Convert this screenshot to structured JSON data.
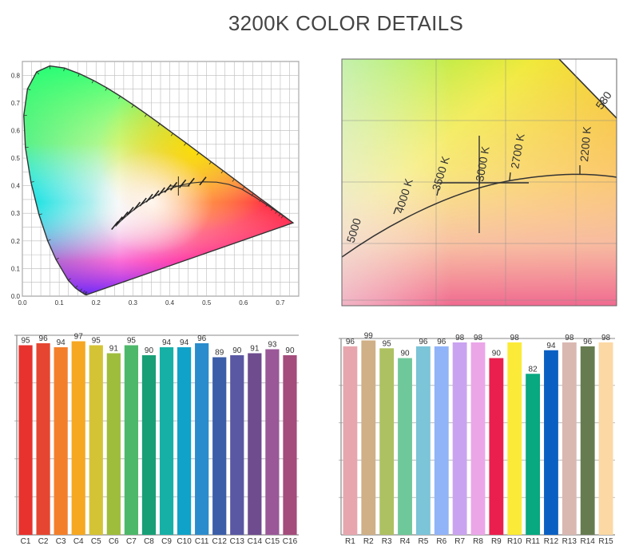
{
  "title": "3200K COLOR DETAILS",
  "chart_data": [
    {
      "type": "scatter",
      "name": "cie-diagram",
      "xticks": [
        "0.0",
        "0.1",
        "0.2",
        "0.3",
        "0.4",
        "0.5",
        "0.6",
        "0.7"
      ],
      "yticks": [
        "0.0",
        "0.1",
        "0.2",
        "0.3",
        "0.4",
        "0.5",
        "0.6",
        "0.7",
        "0.8"
      ],
      "xlim": [
        0,
        0.75
      ],
      "ylim": [
        0,
        0.85
      ],
      "point": {
        "x": 0.4234,
        "y": 0.399
      }
    },
    {
      "type": "scatter",
      "name": "cie-zoom",
      "cct_labels": [
        "5000",
        "4000 K",
        "3500 K",
        "3000 K",
        "2700 K",
        "2200 K",
        "580"
      ]
    },
    {
      "type": "bar",
      "name": "color-rendering-c",
      "categories": [
        "C1",
        "C2",
        "C3",
        "C4",
        "C5",
        "C6",
        "C7",
        "C8",
        "C9",
        "C10",
        "C11",
        "C12",
        "C13",
        "C14",
        "C15",
        "C16"
      ],
      "values": [
        95,
        96,
        94,
        97,
        95,
        91,
        95,
        90,
        94,
        94,
        96,
        89,
        90,
        91,
        93,
        90
      ],
      "colors": [
        "#e8322e",
        "#e64631",
        "#f47f2b",
        "#f6a822",
        "#d5c336",
        "#9fbd3c",
        "#4db86a",
        "#189f76",
        "#17b0a6",
        "#10a2c8",
        "#2a8ccc",
        "#3c5ea8",
        "#5a58a2",
        "#6e4c8e",
        "#9a5898",
        "#a44c7c"
      ],
      "ylim": [
        0,
        100
      ]
    },
    {
      "type": "bar",
      "name": "color-rendering-r",
      "categories": [
        "R1",
        "R2",
        "R3",
        "R4",
        "R5",
        "R6",
        "R7",
        "R8",
        "R9",
        "R10",
        "R11",
        "R12",
        "R13",
        "R14",
        "R15"
      ],
      "values": [
        96,
        99,
        95,
        90,
        96,
        96,
        98,
        98,
        90,
        98,
        82,
        94,
        98,
        96,
        98
      ],
      "colors": [
        "#e7a6ae",
        "#cfb087",
        "#adc162",
        "#6fc89a",
        "#7cc4d8",
        "#91b4f8",
        "#caa3f0",
        "#eba6e8",
        "#ea1f4d",
        "#fbeb38",
        "#08a880",
        "#0a60c2",
        "#d9b8b2",
        "#667c50",
        "#fbd8a4"
      ],
      "ylim": [
        0,
        100
      ]
    }
  ]
}
